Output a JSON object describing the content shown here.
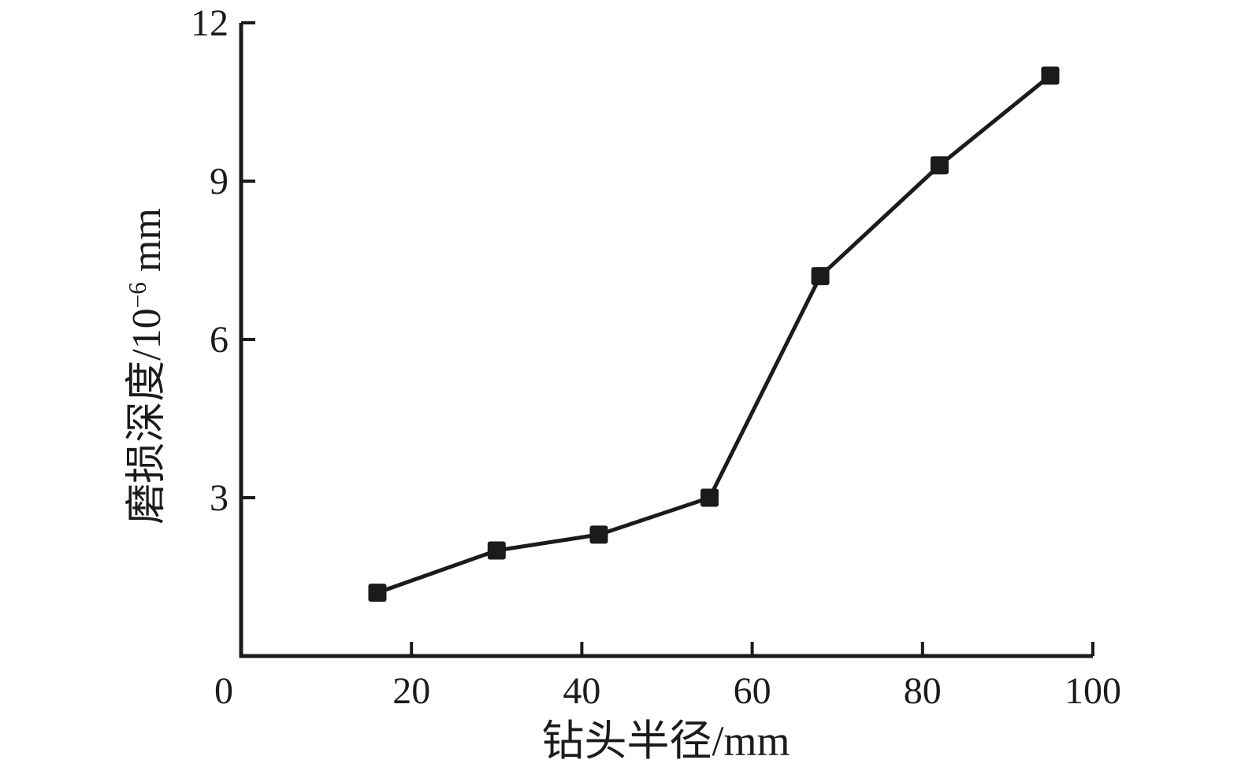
{
  "figure": {
    "background": "#ffffff"
  },
  "chart_data": {
    "type": "line",
    "title": "",
    "xlabel": "钻头半径/mm",
    "ylabel": "磨损深度/10⁻⁶ mm",
    "ylabel_parts": {
      "prefix": "磨损深度/10",
      "superscript": "−6",
      "suffix": " mm"
    },
    "series": [
      {
        "name": "磨损深度",
        "x": [
          16,
          30,
          42,
          55,
          68,
          82,
          95
        ],
        "y": [
          1.2,
          2.0,
          2.3,
          3.0,
          7.2,
          9.3,
          11.0
        ]
      }
    ],
    "xlim": [
      0,
      100
    ],
    "ylim": [
      0,
      12
    ],
    "xticks": [
      20,
      40,
      60,
      80,
      100
    ],
    "yticks": [
      3,
      6,
      9,
      12
    ],
    "origin_label": "0",
    "grid": false,
    "legend_position": "none",
    "marker": "square",
    "line_color": "#1b1b1b",
    "marker_color": "#1b1b1b",
    "axis_color": "#1b1b1b",
    "tick_label_font_size": 48
  }
}
